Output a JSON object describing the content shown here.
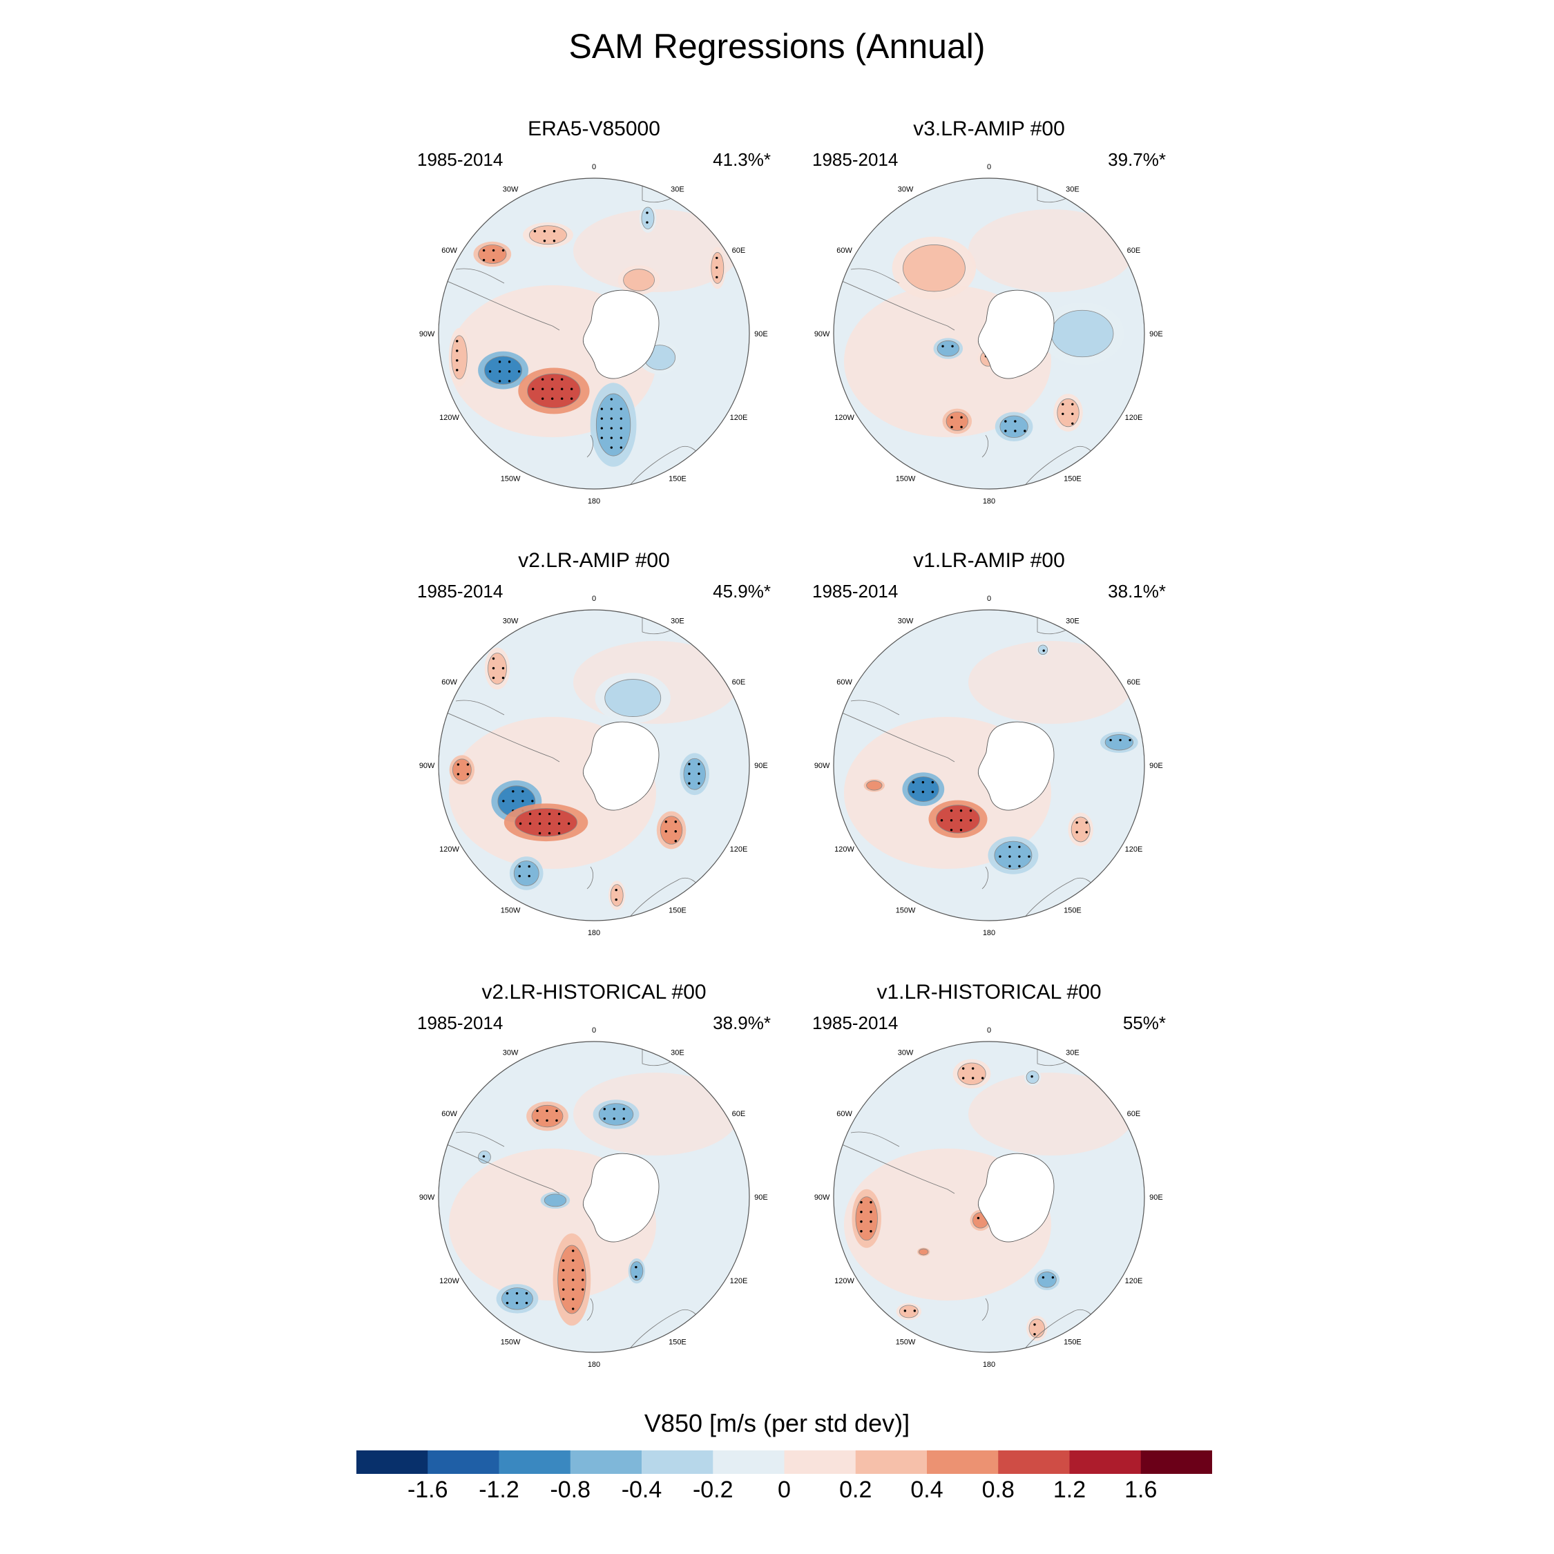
{
  "title": "SAM Regressions (Annual)",
  "panels": [
    {
      "title": "ERA5-V85000",
      "years": "1985-2014",
      "pct": "41.3%*",
      "blobs": [
        {
          "lon": -112,
          "r": 0.63,
          "rx": 0.12,
          "ry": 0.09,
          "level": -0.8,
          "stip": true
        },
        {
          "lon": -145,
          "r": 0.45,
          "rx": 0.17,
          "ry": 0.11,
          "level": 0.8,
          "stip": true
        },
        {
          "lon": 168,
          "r": 0.6,
          "rx": 0.11,
          "ry": 0.2,
          "level": -0.4,
          "stip": true
        },
        {
          "lon": -52,
          "r": 0.83,
          "rx": 0.09,
          "ry": 0.06,
          "level": 0.4,
          "stip": true
        },
        {
          "lon": -25,
          "r": 0.7,
          "rx": 0.12,
          "ry": 0.06,
          "level": 0.2,
          "stip": true
        },
        {
          "lon": -100,
          "r": 0.88,
          "rx": 0.05,
          "ry": 0.14,
          "level": 0.2,
          "stip": true
        },
        {
          "lon": 62,
          "r": 0.9,
          "rx": 0.04,
          "ry": 0.1,
          "level": 0.2,
          "stip": true
        },
        {
          "lon": 25,
          "r": 0.82,
          "rx": 0.04,
          "ry": 0.07,
          "level": -0.2,
          "stip": true
        },
        {
          "lon": 110,
          "r": 0.45,
          "rx": 0.1,
          "ry": 0.08,
          "level": -0.2,
          "stip": false
        },
        {
          "lon": 40,
          "r": 0.45,
          "rx": 0.1,
          "ry": 0.07,
          "level": 0.2,
          "stip": false
        }
      ]
    },
    {
      "title": "v3.LR-AMIP  #00",
      "years": "1985-2014",
      "pct": "39.7%*",
      "blobs": [
        {
          "lon": -110,
          "r": 0.28,
          "rx": 0.07,
          "ry": 0.05,
          "level": -0.4,
          "stip": true
        },
        {
          "lon": -160,
          "r": 0.6,
          "rx": 0.07,
          "ry": 0.06,
          "level": 0.4,
          "stip": true
        },
        {
          "lon": 165,
          "r": 0.62,
          "rx": 0.09,
          "ry": 0.07,
          "level": -0.4,
          "stip": true
        },
        {
          "lon": 135,
          "r": 0.72,
          "rx": 0.07,
          "ry": 0.09,
          "level": 0.2,
          "stip": true
        },
        {
          "lon": -178,
          "r": 0.16,
          "rx": 0.05,
          "ry": 0.05,
          "level": 0.2,
          "stip": true
        },
        {
          "lon": 90,
          "r": 0.6,
          "rx": 0.2,
          "ry": 0.15,
          "level": -0.2,
          "stip": false
        },
        {
          "lon": -40,
          "r": 0.55,
          "rx": 0.2,
          "ry": 0.15,
          "level": 0.2,
          "stip": false
        }
      ]
    },
    {
      "title": "v2.LR-AMIP  #00",
      "years": "1985-2014",
      "pct": "45.9%*",
      "blobs": [
        {
          "lon": -115,
          "r": 0.55,
          "rx": 0.12,
          "ry": 0.1,
          "level": -0.8,
          "stip": true
        },
        {
          "lon": -140,
          "r": 0.48,
          "rx": 0.2,
          "ry": 0.09,
          "level": 0.8,
          "stip": true
        },
        {
          "lon": -92,
          "r": 0.85,
          "rx": 0.06,
          "ry": 0.07,
          "level": 0.4,
          "stip": true
        },
        {
          "lon": 130,
          "r": 0.65,
          "rx": 0.07,
          "ry": 0.09,
          "level": 0.4,
          "stip": true
        },
        {
          "lon": -148,
          "r": 0.82,
          "rx": 0.08,
          "ry": 0.08,
          "level": -0.4,
          "stip": true
        },
        {
          "lon": 95,
          "r": 0.65,
          "rx": 0.07,
          "ry": 0.1,
          "level": -0.4,
          "stip": true
        },
        {
          "lon": 170,
          "r": 0.85,
          "rx": 0.04,
          "ry": 0.07,
          "level": 0.2,
          "stip": true
        },
        {
          "lon": -45,
          "r": 0.88,
          "rx": 0.06,
          "ry": 0.1,
          "level": 0.2,
          "stip": true
        },
        {
          "lon": 30,
          "r": 0.5,
          "rx": 0.18,
          "ry": 0.12,
          "level": -0.2,
          "stip": false
        }
      ]
    },
    {
      "title": "v1.LR-AMIP  #00",
      "years": "1985-2014",
      "pct": "38.1%*",
      "blobs": [
        {
          "lon": -110,
          "r": 0.45,
          "rx": 0.1,
          "ry": 0.08,
          "level": -0.8,
          "stip": true
        },
        {
          "lon": -150,
          "r": 0.4,
          "rx": 0.14,
          "ry": 0.09,
          "level": 0.8,
          "stip": true
        },
        {
          "lon": 165,
          "r": 0.6,
          "rx": 0.12,
          "ry": 0.09,
          "level": -0.4,
          "stip": true
        },
        {
          "lon": 125,
          "r": 0.72,
          "rx": 0.06,
          "ry": 0.08,
          "level": 0.2,
          "stip": true
        },
        {
          "lon": 80,
          "r": 0.85,
          "rx": 0.09,
          "ry": 0.05,
          "level": -0.4,
          "stip": true
        },
        {
          "lon": 25,
          "r": 0.82,
          "rx": 0.03,
          "ry": 0.03,
          "level": -0.2,
          "stip": true
        },
        {
          "lon": -100,
          "r": 0.75,
          "rx": 0.05,
          "ry": 0.03,
          "level": 0.4,
          "stip": false
        }
      ]
    },
    {
      "title": "v2.LR-HISTORICAL  #00",
      "years": "1985-2014",
      "pct": "38.9%*",
      "blobs": [
        {
          "lon": -165,
          "r": 0.55,
          "rx": 0.09,
          "ry": 0.22,
          "level": 0.4,
          "stip": true
        },
        {
          "lon": -143,
          "r": 0.82,
          "rx": 0.1,
          "ry": 0.07,
          "level": -0.4,
          "stip": true
        },
        {
          "lon": -30,
          "r": 0.6,
          "rx": 0.1,
          "ry": 0.07,
          "level": 0.4,
          "stip": true
        },
        {
          "lon": 15,
          "r": 0.55,
          "rx": 0.11,
          "ry": 0.07,
          "level": -0.4,
          "stip": true
        },
        {
          "lon": 150,
          "r": 0.55,
          "rx": 0.04,
          "ry": 0.06,
          "level": -0.4,
          "stip": true
        },
        {
          "lon": -70,
          "r": 0.75,
          "rx": 0.04,
          "ry": 0.04,
          "level": -0.2,
          "stip": true
        },
        {
          "lon": -95,
          "r": 0.25,
          "rx": 0.07,
          "ry": 0.04,
          "level": -0.4,
          "stip": false
        }
      ]
    },
    {
      "title": "v1.LR-HISTORICAL  #00",
      "years": "1985-2014",
      "pct": "55%*",
      "blobs": [
        {
          "lon": -100,
          "r": 0.8,
          "rx": 0.07,
          "ry": 0.14,
          "level": 0.4,
          "stip": true
        },
        {
          "lon": -8,
          "r": 0.8,
          "rx": 0.09,
          "ry": 0.07,
          "level": 0.2,
          "stip": true
        },
        {
          "lon": -160,
          "r": 0.16,
          "rx": 0.05,
          "ry": 0.05,
          "level": 0.4,
          "stip": true
        },
        {
          "lon": 145,
          "r": 0.65,
          "rx": 0.06,
          "ry": 0.05,
          "level": -0.4,
          "stip": true
        },
        {
          "lon": 160,
          "r": 0.9,
          "rx": 0.05,
          "ry": 0.06,
          "level": 0.2,
          "stip": true
        },
        {
          "lon": 20,
          "r": 0.82,
          "rx": 0.04,
          "ry": 0.04,
          "level": -0.2,
          "stip": true
        },
        {
          "lon": -145,
          "r": 0.9,
          "rx": 0.06,
          "ry": 0.04,
          "level": 0.2,
          "stip": true
        },
        {
          "lon": -130,
          "r": 0.55,
          "rx": 0.03,
          "ry": 0.02,
          "level": 0.4,
          "stip": false
        }
      ]
    }
  ],
  "lon_labels": [
    {
      "lon": 0,
      "text": "0"
    },
    {
      "lon": 30,
      "text": "30E"
    },
    {
      "lon": 60,
      "text": "60E"
    },
    {
      "lon": 90,
      "text": "90E"
    },
    {
      "lon": 120,
      "text": "120E"
    },
    {
      "lon": 150,
      "text": "150E"
    },
    {
      "lon": 180,
      "text": "180"
    },
    {
      "lon": -150,
      "text": "150W"
    },
    {
      "lon": -120,
      "text": "120W"
    },
    {
      "lon": -90,
      "text": "90W"
    },
    {
      "lon": -60,
      "text": "60W"
    },
    {
      "lon": -30,
      "text": "30W"
    }
  ],
  "colorbar": {
    "title": "V850 [m/s (per std dev)]",
    "colors": [
      "#08306b",
      "#1f5fa6",
      "#3a88c0",
      "#7fb7d9",
      "#b7d7ea",
      "#e4eef4",
      "#f9e3dc",
      "#f6c0aa",
      "#ec9272",
      "#cf4d45",
      "#ad1c2c",
      "#6b0018"
    ],
    "levels": [
      -1.6,
      -1.2,
      -0.8,
      -0.4,
      -0.2,
      0,
      0.2,
      0.4,
      0.8,
      1.2,
      1.6
    ],
    "labels": [
      "-1.6",
      "-1.2",
      "-0.8",
      "-0.4",
      "-0.2",
      "0",
      "0.2",
      "0.4",
      "0.8",
      "1.2",
      "1.6"
    ]
  }
}
